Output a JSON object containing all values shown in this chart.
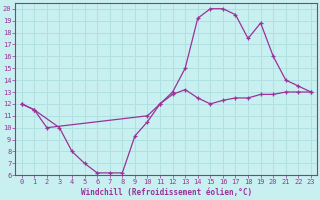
{
  "xlabel": "Windchill (Refroidissement éolien,°C)",
  "bg_color": "#c8f0f0",
  "grid_color": "#b0e0e0",
  "line_color": "#993399",
  "xlim": [
    -0.5,
    23.5
  ],
  "ylim": [
    6,
    20.5
  ],
  "xticks": [
    0,
    1,
    2,
    3,
    4,
    5,
    6,
    7,
    8,
    9,
    10,
    11,
    12,
    13,
    14,
    15,
    16,
    17,
    18,
    19,
    20,
    21,
    22,
    23
  ],
  "yticks": [
    6,
    7,
    8,
    9,
    10,
    11,
    12,
    13,
    14,
    15,
    16,
    17,
    18,
    19,
    20
  ],
  "curve1_x": [
    0,
    1,
    2,
    10,
    11,
    12,
    13,
    14,
    15,
    16,
    17,
    18,
    19,
    20,
    21,
    22,
    23
  ],
  "curve1_y": [
    12,
    11.5,
    10,
    11,
    12,
    13,
    15,
    19.2,
    20.0,
    20.0,
    19.5,
    17.5,
    18.8,
    16.0,
    14.0,
    13.5,
    13.0
  ],
  "curve2_x": [
    0,
    1,
    3,
    4,
    5,
    6,
    7,
    8,
    9,
    10,
    11,
    12,
    13,
    14,
    15,
    16,
    17,
    18,
    19,
    20,
    21,
    22,
    23
  ],
  "curve2_y": [
    12,
    11.5,
    10,
    8,
    7,
    6.2,
    6.2,
    6.2,
    9.3,
    10.5,
    12.0,
    12.8,
    13.2,
    12.5,
    12.0,
    12.3,
    12.5,
    12.5,
    12.8,
    12.8,
    13.0,
    13.0,
    13.0
  ]
}
